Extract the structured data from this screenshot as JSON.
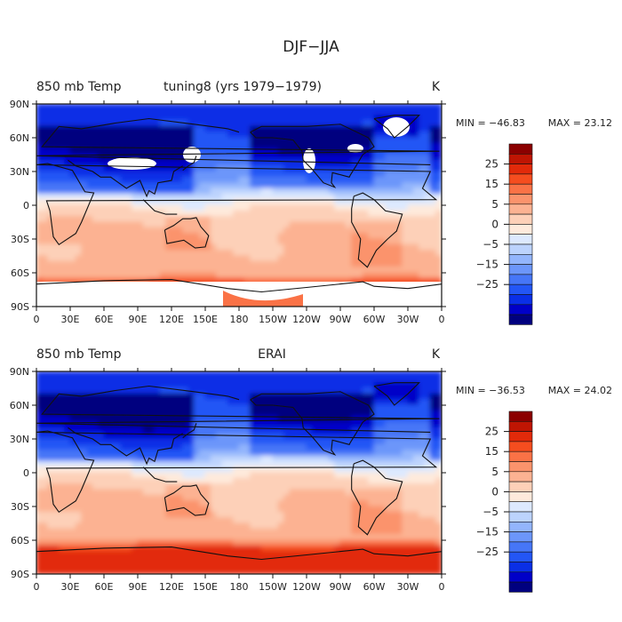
{
  "figure_title": "DJF−JJA",
  "colorbar": {
    "colors": [
      "#00007f",
      "#0000c8",
      "#0a2fe6",
      "#2356f5",
      "#4676f7",
      "#6c96fa",
      "#93b5fc",
      "#bcd3fd",
      "#dde9fe",
      "#ffffff",
      "#feeadc",
      "#fdd0b8",
      "#fcb292",
      "#fb936c",
      "#fa7246",
      "#f54d1f",
      "#e22a0a",
      "#bf1503",
      "#8b0000"
    ],
    "tick_labels": [
      "25",
      "15",
      "5",
      "0",
      "−5",
      "−15",
      "−25"
    ],
    "levels": [
      -30,
      -25,
      -20,
      -15,
      -10,
      -5,
      -2.5,
      0,
      2.5,
      5,
      10,
      15,
      20,
      25,
      30
    ]
  },
  "chart_data": [
    {
      "type": "heatmap",
      "title": "850 mb Temp",
      "subtitle": "tuning8 (yrs 1979−1979)",
      "units": "K",
      "min_label": "MIN = −46.83",
      "max_label": "MAX =  23.12",
      "min": -46.83,
      "max": 23.12,
      "x_ticks": [
        "0",
        "30E",
        "60E",
        "90E",
        "120E",
        "150E",
        "180",
        "150W",
        "120W",
        "90W",
        "60W",
        "30W",
        "0"
      ],
      "y_ticks": [
        "90N",
        "60N",
        "30N",
        "0",
        "30S",
        "60S",
        "90S"
      ],
      "x_range": [
        0,
        360
      ],
      "y_range": [
        -90,
        90
      ]
    },
    {
      "type": "heatmap",
      "title": "850 mb Temp",
      "subtitle": "ERAI",
      "units": "K",
      "min_label": "MIN = −36.53",
      "max_label": "MAX =  24.02",
      "min": -36.53,
      "max": 24.02,
      "x_ticks": [
        "0",
        "30E",
        "60E",
        "90E",
        "120E",
        "150E",
        "180",
        "150W",
        "120W",
        "90W",
        "60W",
        "30W",
        "0"
      ],
      "y_ticks": [
        "90N",
        "60N",
        "30N",
        "0",
        "30S",
        "60S",
        "90S"
      ],
      "x_range": [
        0,
        360
      ],
      "y_range": [
        -90,
        90
      ]
    }
  ]
}
